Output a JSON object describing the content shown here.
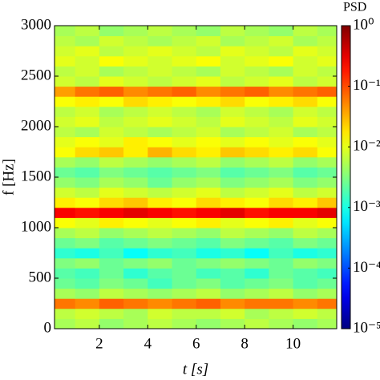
{
  "chart_data": {
    "type": "heatmap",
    "xlabel": "t [s]",
    "ylabel": "f [Hz]",
    "colorbar_label": "PSD",
    "xlim": [
      0.15,
      11.8
    ],
    "xticks": [
      2,
      4,
      6,
      8,
      10
    ],
    "ylim": [
      0,
      3000
    ],
    "yticks": [
      0,
      500,
      1000,
      1500,
      2000,
      2500,
      3000
    ],
    "zlim": [
      -5,
      0
    ],
    "zticks": [
      {
        "value": 0,
        "label": "10⁰"
      },
      {
        "value": -1,
        "label": "10⁻¹"
      },
      {
        "value": -2,
        "label": "10⁻²"
      },
      {
        "value": -3,
        "label": "10⁻³"
      },
      {
        "value": -4,
        "label": "10⁻⁴"
      },
      {
        "value": -5,
        "label": "10⁻⁵"
      }
    ],
    "colormap": "jet",
    "x": [
      0.5,
      1.5,
      2.5,
      3.5,
      4.5,
      5.5,
      6.5,
      7.5,
      8.5,
      9.5,
      10.5,
      11.5
    ],
    "y": [
      50,
      150,
      250,
      350,
      450,
      550,
      650,
      750,
      850,
      950,
      1050,
      1150,
      1250,
      1350,
      1450,
      1550,
      1650,
      1750,
      1850,
      1950,
      2050,
      2150,
      2250,
      2350,
      2450,
      2550,
      2650,
      2750,
      2850,
      2950
    ],
    "z": [
      [
        -2.3,
        -2.2,
        -2.4,
        -2.3,
        -2.2,
        -2.3,
        -2.4,
        -2.3,
        -2.2,
        -2.3,
        -2.4,
        -2.3
      ],
      [
        -2.2,
        -2.1,
        -2.2,
        -2.3,
        -2.1,
        -2.2,
        -2.2,
        -2.1,
        -2.3,
        -2.2,
        -2.1,
        -2.2
      ],
      [
        -1.2,
        -1.3,
        -1.1,
        -1.2,
        -1.3,
        -1.2,
        -1.1,
        -1.3,
        -1.2,
        -1.2,
        -1.3,
        -1.2
      ],
      [
        -2.3,
        -2.4,
        -2.2,
        -2.3,
        -2.4,
        -2.3,
        -2.2,
        -2.4,
        -2.3,
        -2.2,
        -2.4,
        -2.3
      ],
      [
        -2.6,
        -2.7,
        -2.5,
        -2.6,
        -2.8,
        -2.6,
        -2.5,
        -2.7,
        -2.6,
        -2.5,
        -2.7,
        -2.6
      ],
      [
        -2.7,
        -2.8,
        -2.6,
        -2.9,
        -2.7,
        -2.6,
        -2.8,
        -2.7,
        -2.9,
        -2.6,
        -2.7,
        -2.8
      ],
      [
        -2.5,
        -2.4,
        -2.6,
        -2.5,
        -2.4,
        -2.6,
        -2.5,
        -2.4,
        -2.5,
        -2.6,
        -2.4,
        -2.5
      ],
      [
        -2.9,
        -3.0,
        -2.8,
        -3.1,
        -2.9,
        -2.8,
        -3.0,
        -2.9,
        -3.1,
        -2.8,
        -3.0,
        -2.9
      ],
      [
        -2.6,
        -2.5,
        -2.7,
        -2.6,
        -2.5,
        -2.6,
        -2.7,
        -2.5,
        -2.6,
        -2.7,
        -2.5,
        -2.6
      ],
      [
        -2.3,
        -2.2,
        -2.4,
        -2.3,
        -2.2,
        -2.3,
        -2.4,
        -2.2,
        -2.3,
        -2.4,
        -2.2,
        -2.3
      ],
      [
        -1.9,
        -2.0,
        -1.8,
        -1.9,
        -2.0,
        -1.9,
        -1.8,
        -2.0,
        -1.9,
        -1.8,
        -2.0,
        -1.9
      ],
      [
        -0.6,
        -0.7,
        -0.6,
        -0.5,
        -0.6,
        -0.7,
        -0.6,
        -0.5,
        -0.7,
        -0.6,
        -0.6,
        -0.5
      ],
      [
        -1.8,
        -1.9,
        -1.7,
        -1.6,
        -1.8,
        -1.9,
        -1.7,
        -1.8,
        -1.9,
        -1.7,
        -1.8,
        -1.6
      ],
      [
        -2.1,
        -2.2,
        -2.0,
        -2.1,
        -2.2,
        -2.1,
        -2.0,
        -2.2,
        -2.1,
        -2.0,
        -2.2,
        -2.1
      ],
      [
        -2.4,
        -2.5,
        -2.3,
        -2.4,
        -2.6,
        -2.4,
        -2.3,
        -2.5,
        -2.4,
        -2.3,
        -2.5,
        -2.4
      ],
      [
        -2.6,
        -2.7,
        -2.5,
        -2.6,
        -2.7,
        -2.6,
        -2.5,
        -2.7,
        -2.6,
        -2.5,
        -2.7,
        -2.6
      ],
      [
        -2.3,
        -2.4,
        -2.2,
        -2.3,
        -2.4,
        -2.3,
        -2.2,
        -2.4,
        -2.3,
        -2.2,
        -2.4,
        -2.3
      ],
      [
        -1.9,
        -1.7,
        -1.6,
        -1.8,
        -1.5,
        -1.7,
        -1.8,
        -1.6,
        -1.7,
        -1.8,
        -1.7,
        -1.9
      ],
      [
        -2.0,
        -1.9,
        -2.0,
        -1.8,
        -1.9,
        -2.0,
        -1.9,
        -2.0,
        -1.9,
        -2.0,
        -1.9,
        -2.0
      ],
      [
        -2.2,
        -2.3,
        -2.1,
        -2.2,
        -2.3,
        -2.2,
        -2.1,
        -2.3,
        -2.2,
        -2.1,
        -2.3,
        -2.2
      ],
      [
        -2.1,
        -2.0,
        -2.2,
        -2.1,
        -2.0,
        -2.1,
        -2.2,
        -2.0,
        -2.1,
        -2.2,
        -2.0,
        -2.1
      ],
      [
        -2.2,
        -2.1,
        -2.3,
        -2.2,
        -2.1,
        -2.2,
        -2.3,
        -2.1,
        -2.2,
        -2.3,
        -2.1,
        -2.2
      ],
      [
        -1.9,
        -1.8,
        -1.9,
        -1.7,
        -1.8,
        -1.9,
        -1.8,
        -1.7,
        -1.9,
        -1.8,
        -1.7,
        -1.9
      ],
      [
        -1.4,
        -1.2,
        -1.1,
        -1.3,
        -1.2,
        -1.1,
        -1.3,
        -1.2,
        -1.1,
        -1.3,
        -1.2,
        -1.1
      ],
      [
        -2.1,
        -2.2,
        -2.0,
        -2.1,
        -2.2,
        -2.1,
        -2.0,
        -2.2,
        -2.1,
        -2.0,
        -2.2,
        -2.1
      ],
      [
        -2.2,
        -2.1,
        -2.3,
        -2.2,
        -2.1,
        -2.2,
        -2.3,
        -2.1,
        -2.2,
        -2.3,
        -2.1,
        -2.2
      ],
      [
        -2.0,
        -2.1,
        -1.9,
        -2.0,
        -2.1,
        -2.0,
        -1.9,
        -2.1,
        -2.0,
        -1.9,
        -2.1,
        -2.0
      ],
      [
        -2.1,
        -2.0,
        -2.2,
        -2.1,
        -2.0,
        -2.1,
        -2.2,
        -2.0,
        -2.1,
        -2.2,
        -2.0,
        -2.1
      ],
      [
        -2.2,
        -2.3,
        -2.1,
        -2.2,
        -2.3,
        -2.2,
        -2.1,
        -2.3,
        -2.2,
        -2.1,
        -2.3,
        -2.2
      ],
      [
        -2.3,
        -2.2,
        -2.4,
        -2.3,
        -2.2,
        -2.3,
        -2.4,
        -2.2,
        -2.3,
        -2.4,
        -2.2,
        -2.3
      ]
    ]
  }
}
